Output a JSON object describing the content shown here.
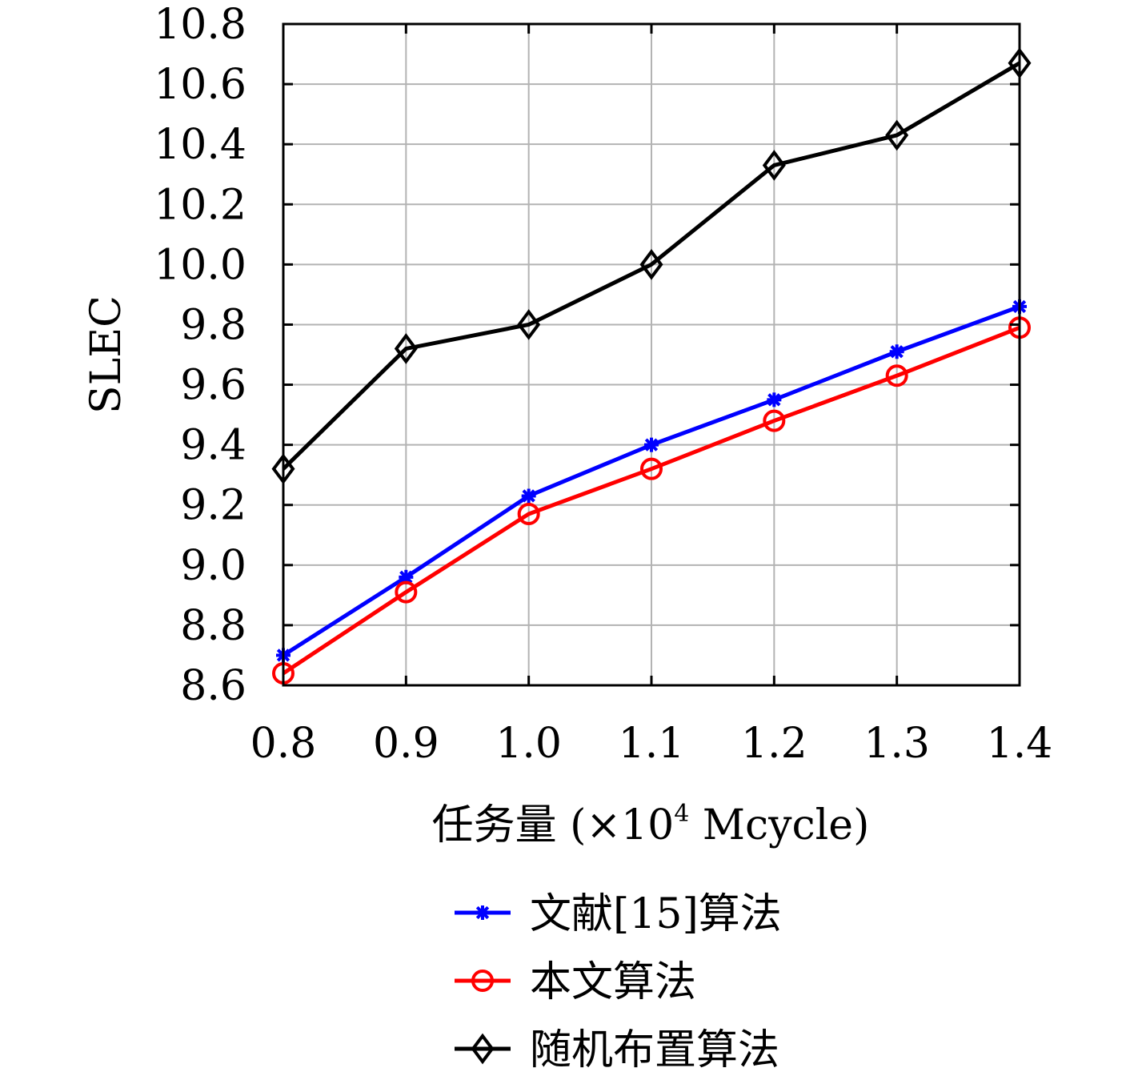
{
  "chart_data": {
    "type": "line",
    "xlabel": "任务量 (×10",
    "xlabel_sup": "4",
    "xlabel_unit": " Mcycle)",
    "ylabel": "SLEC",
    "x": [
      0.8,
      0.9,
      1.0,
      1.1,
      1.2,
      1.3,
      1.4
    ],
    "x_tick_labels": [
      "0.8",
      "0.9",
      "1.0",
      "1.1",
      "1.2",
      "1.3",
      "1.4"
    ],
    "xlim": [
      0.8,
      1.4
    ],
    "ylim": [
      8.6,
      10.8
    ],
    "y_ticks": [
      8.6,
      8.8,
      9.0,
      9.2,
      9.4,
      9.6,
      9.8,
      10.0,
      10.2,
      10.4,
      10.6,
      10.8
    ],
    "y_tick_labels": [
      "8.6",
      "8.8",
      "9.0",
      "9.2",
      "9.4",
      "9.6",
      "9.8",
      "10.0",
      "10.2",
      "10.4",
      "10.6",
      "10.8"
    ],
    "grid": true,
    "legend_position": "bottom-center",
    "series": [
      {
        "name": "文献[15]算法",
        "color": "#0000ff",
        "marker": "asterisk",
        "values": [
          8.7,
          8.96,
          9.23,
          9.4,
          9.55,
          9.71,
          9.86
        ]
      },
      {
        "name": "本文算法",
        "color": "#ff0000",
        "marker": "circle",
        "values": [
          8.64,
          8.91,
          9.17,
          9.32,
          9.48,
          9.63,
          9.79
        ]
      },
      {
        "name": "随机布置算法",
        "color": "#000000",
        "marker": "diamond",
        "values": [
          9.32,
          9.72,
          9.8,
          10.0,
          10.33,
          10.43,
          10.67
        ]
      }
    ]
  }
}
